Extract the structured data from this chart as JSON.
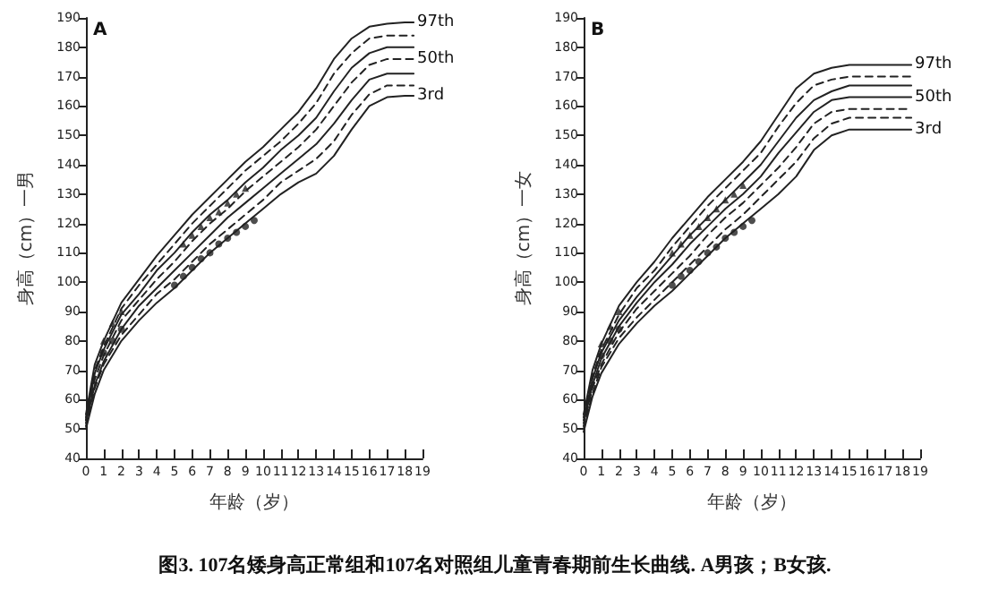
{
  "chart_data": [
    {
      "type": "line",
      "xlabel": "年龄（岁）",
      "ylabel": "身高（cm）一男",
      "annotations": [
        "A",
        "图3. 107名矮身高正常组和107名对照组儿童青春期前生长曲线. A男孩；B女孩."
      ],
      "xlim": [
        0,
        19
      ],
      "xticks": [
        0,
        1,
        2,
        3,
        4,
        5,
        6,
        7,
        8,
        9,
        10,
        11,
        12,
        13,
        14,
        15,
        16,
        17,
        18,
        19
      ],
      "ylim": [
        40,
        190
      ],
      "yticks": [
        40,
        50,
        60,
        70,
        80,
        90,
        100,
        110,
        120,
        130,
        140,
        150,
        160,
        170,
        180,
        190
      ],
      "grid": false,
      "legend": false,
      "x": [
        0,
        0.5,
        1,
        2,
        3,
        4,
        5,
        6,
        7,
        8,
        9,
        10,
        11,
        12,
        13,
        14,
        15,
        16,
        17,
        18,
        18.5
      ],
      "series": [
        {
          "name": "97th",
          "color": "#222222",
          "line_style": "solid",
          "marker": "none",
          "values": [
            55,
            72,
            80,
            93,
            101,
            109,
            116,
            123,
            129,
            135,
            141,
            146,
            152,
            158,
            166,
            176,
            183,
            187,
            188,
            188.5,
            188.5
          ]
        },
        {
          "color": "#222222",
          "line_style": "dashed",
          "marker": "none",
          "values": [
            54,
            70,
            78,
            91,
            99,
            106,
            113,
            120,
            126,
            132,
            138,
            143,
            148,
            154,
            161,
            171,
            178,
            183,
            184,
            184,
            184
          ]
        },
        {
          "color": "#222222",
          "line_style": "solid",
          "marker": "none",
          "values": [
            53,
            69,
            77,
            89,
            96,
            104,
            110,
            117,
            123,
            128,
            134,
            139,
            145,
            150,
            156,
            165,
            173,
            178,
            180,
            180,
            180
          ]
        },
        {
          "name": "50th",
          "color": "#222222",
          "line_style": "dashed",
          "marker": "none",
          "values": [
            53,
            67,
            75,
            87,
            94,
            101,
            107,
            114,
            120,
            125,
            131,
            136,
            141,
            146,
            152,
            160,
            168,
            174,
            176,
            176,
            176
          ]
        },
        {
          "color": "#222222",
          "line_style": "solid",
          "marker": "none",
          "values": [
            52,
            65,
            73,
            84,
            92,
            98,
            104,
            110,
            116,
            122,
            127,
            132,
            137,
            142,
            147,
            154,
            162,
            169,
            171,
            171,
            171
          ]
        },
        {
          "color": "#222222",
          "line_style": "dashed",
          "marker": "none",
          "values": [
            51,
            64,
            72,
            82,
            89,
            96,
            101,
            107,
            113,
            118,
            123,
            128,
            134,
            138,
            142,
            148,
            157,
            164,
            167,
            167,
            167
          ]
        },
        {
          "name": "3rd",
          "color": "#222222",
          "line_style": "solid",
          "marker": "none",
          "values": [
            50,
            62,
            70,
            80,
            87,
            93,
            98,
            104,
            110,
            115,
            120,
            125,
            130,
            134,
            137,
            143,
            152,
            160,
            163,
            163.5,
            163.5
          ]
        },
        {
          "type": "scatter",
          "color": "#222222",
          "marker": "triangle",
          "x": [
            1,
            1.5,
            2,
            5.5,
            6,
            6.5,
            7,
            7.5,
            8,
            8.5,
            9
          ],
          "values": [
            80,
            86,
            90,
            113,
            116,
            119,
            122,
            124,
            127,
            130,
            132
          ]
        },
        {
          "type": "scatter",
          "color": "#222222",
          "marker": "circle",
          "x": [
            1,
            1.5,
            2,
            5,
            5.5,
            6,
            6.5,
            7,
            7.5,
            8,
            8.5,
            9,
            9.5
          ],
          "values": [
            76,
            80,
            84,
            99,
            102,
            105,
            108,
            110,
            113,
            115,
            117,
            119,
            121
          ]
        }
      ]
    },
    {
      "type": "line",
      "xlabel": "年龄（岁）",
      "ylabel": "身高（cm）一女",
      "annotations": [
        "B"
      ],
      "xlim": [
        0,
        19
      ],
      "xticks": [
        0,
        1,
        2,
        3,
        4,
        5,
        6,
        7,
        8,
        9,
        10,
        11,
        12,
        13,
        14,
        15,
        16,
        17,
        18,
        19
      ],
      "ylim": [
        40,
        190
      ],
      "yticks": [
        40,
        50,
        60,
        70,
        80,
        90,
        100,
        110,
        120,
        130,
        140,
        150,
        160,
        170,
        180,
        190
      ],
      "grid": false,
      "legend": false,
      "x": [
        0,
        0.5,
        1,
        2,
        3,
        4,
        5,
        6,
        7,
        8,
        9,
        10,
        11,
        12,
        13,
        14,
        15,
        16,
        17,
        18,
        18.5
      ],
      "series": [
        {
          "name": "97th",
          "color": "#222222",
          "line_style": "solid",
          "marker": "none",
          "values": [
            55,
            70,
            79,
            92,
            100,
            107,
            115,
            122,
            129,
            135,
            141,
            148,
            157,
            166,
            171,
            173,
            174,
            174,
            174,
            174,
            174
          ]
        },
        {
          "color": "#222222",
          "line_style": "dashed",
          "marker": "none",
          "values": [
            54,
            68,
            77,
            89,
            98,
            104,
            112,
            119,
            126,
            132,
            138,
            144,
            153,
            161,
            167,
            169,
            170,
            170,
            170,
            170,
            170
          ]
        },
        {
          "color": "#222222",
          "line_style": "solid",
          "marker": "none",
          "values": [
            53,
            67,
            76,
            87,
            95,
            102,
            109,
            116,
            122,
            128,
            134,
            140,
            148,
            156,
            162,
            165,
            167,
            167,
            167,
            167,
            167
          ]
        },
        {
          "name": "50th",
          "color": "#222222",
          "line_style": "solid",
          "marker": "none",
          "values": [
            52,
            65,
            74,
            85,
            93,
            100,
            106,
            113,
            119,
            125,
            130,
            136,
            144,
            151,
            158,
            162,
            163,
            163,
            163,
            163,
            163
          ]
        },
        {
          "color": "#222222",
          "line_style": "dashed",
          "marker": "none",
          "values": [
            51,
            64,
            72,
            83,
            91,
            97,
            103,
            109,
            116,
            122,
            127,
            133,
            139,
            146,
            154,
            158,
            159,
            159,
            159,
            159,
            159
          ]
        },
        {
          "color": "#222222",
          "line_style": "dashed",
          "marker": "none",
          "values": [
            50,
            62,
            71,
            81,
            88,
            94,
            100,
            106,
            112,
            118,
            123,
            129,
            135,
            141,
            149,
            154,
            156,
            156,
            156,
            156,
            156
          ]
        },
        {
          "name": "3rd",
          "color": "#222222",
          "line_style": "solid",
          "marker": "none",
          "values": [
            49,
            61,
            69,
            79,
            86,
            92,
            97,
            103,
            109,
            115,
            120,
            125,
            130,
            136,
            145,
            150,
            152,
            152,
            152,
            152,
            152
          ]
        },
        {
          "type": "scatter",
          "color": "#222222",
          "marker": "triangle",
          "x": [
            1,
            1.5,
            2,
            5,
            5.5,
            6,
            6.5,
            7,
            7.5,
            8,
            8.5,
            9
          ],
          "values": [
            79,
            85,
            90,
            110,
            113,
            116,
            119,
            122,
            125,
            128,
            130,
            133
          ]
        },
        {
          "type": "scatter",
          "color": "#222222",
          "marker": "circle",
          "x": [
            1,
            1.5,
            2,
            5,
            5.5,
            6,
            6.5,
            7,
            7.5,
            8,
            8.5,
            9,
            9.5
          ],
          "values": [
            75,
            80,
            84,
            99,
            102,
            104,
            107,
            110,
            112,
            115,
            117,
            119,
            121
          ]
        }
      ]
    }
  ]
}
